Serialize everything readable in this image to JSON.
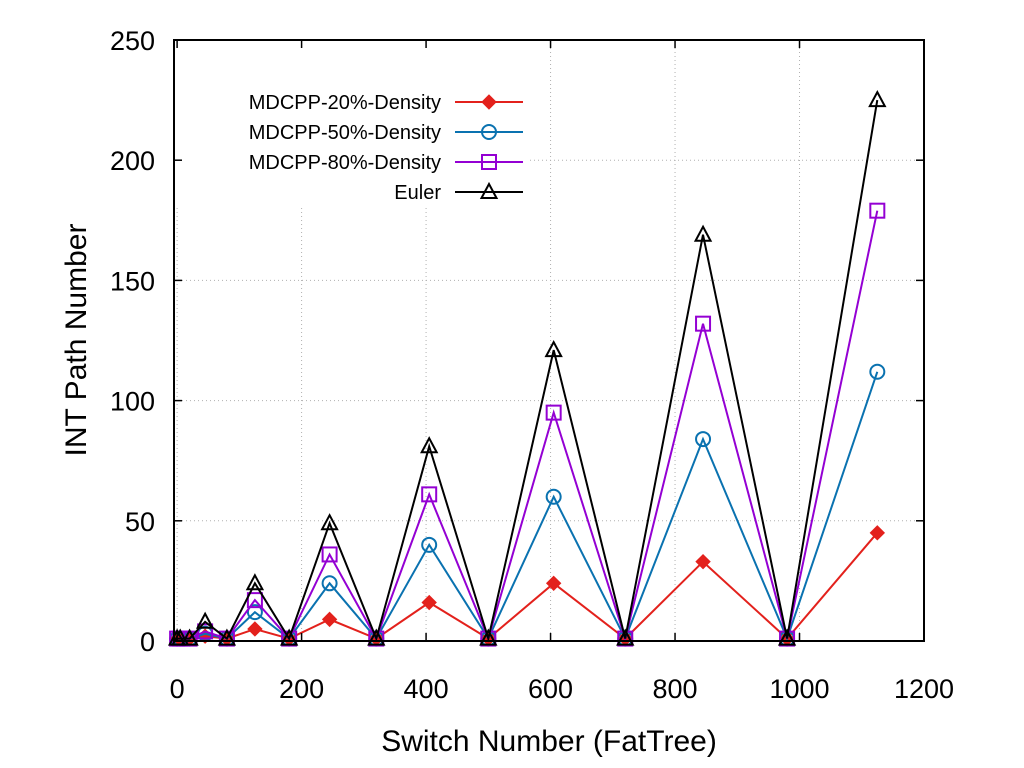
{
  "chart_data": {
    "type": "line",
    "title": "",
    "xlabel": "Switch Number (FatTree)",
    "ylabel": "INT Path Number",
    "xlim": [
      -5,
      1200
    ],
    "ylim": [
      0,
      250
    ],
    "xticks": [
      0,
      200,
      400,
      600,
      800,
      1000,
      1200
    ],
    "yticks": [
      0,
      50,
      100,
      150,
      200,
      250
    ],
    "grid": true,
    "legend_position": "top-left",
    "x": [
      0,
      5,
      20,
      45,
      80,
      125,
      180,
      245,
      320,
      405,
      500,
      605,
      720,
      845,
      980,
      1125
    ],
    "series": [
      {
        "name": "MDCPP-20%-Density",
        "marker": "filled-diamond",
        "color": "#e3211c",
        "values": [
          1,
          1,
          1,
          2,
          1,
          5,
          1,
          9,
          1,
          16,
          1,
          24,
          1,
          33,
          1,
          45
        ]
      },
      {
        "name": "MDCPP-50%-Density",
        "marker": "open-circle",
        "color": "#0a72b0",
        "values": [
          1,
          1,
          1,
          3,
          1,
          12,
          1,
          24,
          1,
          40,
          1,
          60,
          1,
          84,
          1,
          112
        ]
      },
      {
        "name": "MDCPP-80%-Density",
        "marker": "open-square",
        "color": "#9400d3",
        "values": [
          1,
          1,
          1,
          4,
          1,
          17,
          1,
          36,
          1,
          61,
          1,
          95,
          1,
          132,
          1,
          179
        ]
      },
      {
        "name": "Euler",
        "marker": "open-triangle",
        "color": "#000000",
        "values": [
          1,
          1,
          1,
          8,
          1,
          24,
          1,
          49,
          1,
          81,
          1,
          121,
          1,
          169,
          1,
          225
        ]
      }
    ]
  }
}
